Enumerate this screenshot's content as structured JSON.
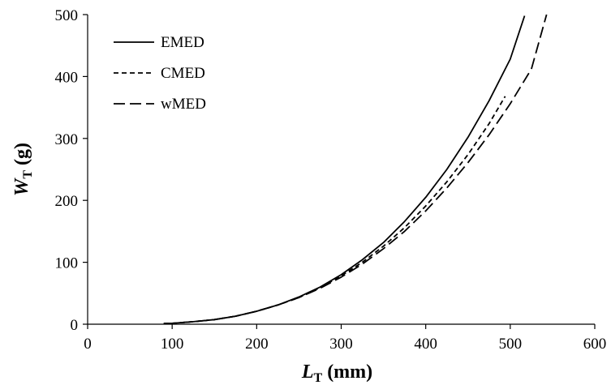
{
  "chart_data": {
    "type": "line",
    "title": "",
    "xlabel": {
      "main": "L",
      "sub": "T",
      "unit": "(mm)"
    },
    "ylabel": {
      "main": "W",
      "sub": "T",
      "unit": "(g)"
    },
    "xlim": [
      0,
      600
    ],
    "ylim": [
      0,
      500
    ],
    "xticks": [
      0,
      100,
      200,
      300,
      400,
      500,
      600
    ],
    "yticks": [
      0,
      100,
      200,
      300,
      400,
      500
    ],
    "grid": false,
    "legend_position": "top-left",
    "series": [
      {
        "name": "EMED",
        "dash": "solid",
        "color": "#000000",
        "x": [
          90,
          100,
          125,
          150,
          175,
          200,
          225,
          250,
          275,
          300,
          325,
          350,
          375,
          400,
          425,
          450,
          475,
          500,
          517
        ],
        "y": [
          1,
          1.5,
          4,
          7.5,
          13,
          21,
          31,
          44,
          60,
          80,
          104,
          132,
          166,
          205,
          250,
          302,
          361,
          428,
          498
        ]
      },
      {
        "name": "CMED",
        "dash": "short",
        "color": "#000000",
        "x": [
          90,
          100,
          125,
          150,
          175,
          200,
          225,
          250,
          275,
          300,
          325,
          350,
          375,
          400,
          425,
          450,
          475,
          494
        ],
        "y": [
          1,
          1.5,
          4,
          7.5,
          13,
          21,
          31,
          43,
          59,
          78,
          100,
          126,
          156,
          191,
          230,
          274,
          324,
          368
        ]
      },
      {
        "name": "wMED",
        "dash": "long",
        "color": "#000000",
        "x": [
          90,
          100,
          125,
          150,
          175,
          200,
          225,
          250,
          275,
          300,
          325,
          350,
          375,
          400,
          425,
          450,
          475,
          500,
          525,
          543
        ],
        "y": [
          1,
          1.5,
          4,
          7.5,
          13,
          21,
          31,
          43,
          58,
          76,
          97,
          122,
          150,
          183,
          220,
          261,
          306,
          356,
          412,
          500
        ]
      }
    ]
  }
}
